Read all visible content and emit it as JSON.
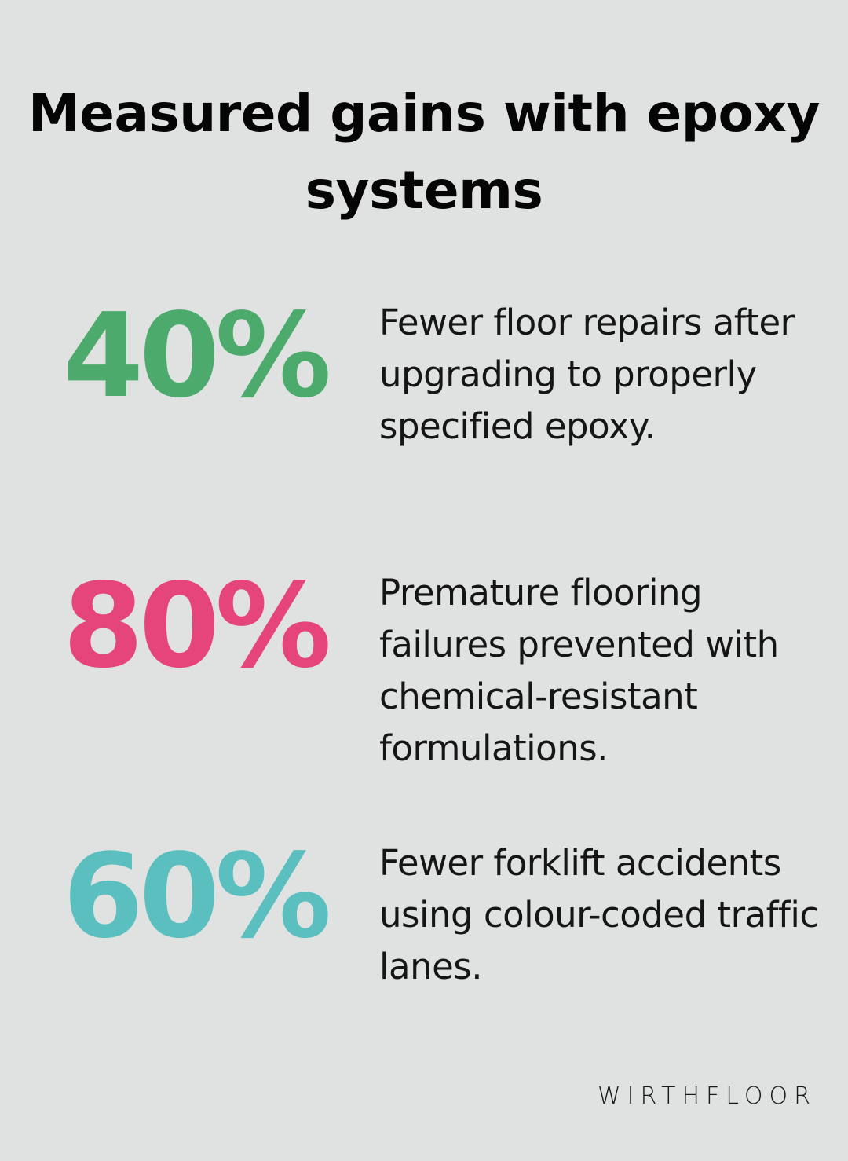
{
  "title": "Measured gains with epoxy systems",
  "stats": [
    {
      "value": "40%",
      "color": "#4caa6c",
      "description": "Fewer floor repairs after upgrading to properly specified epoxy."
    },
    {
      "value": "80%",
      "color": "#e5457a",
      "description": "Premature flooring failures prevented with chemical-resistant formulations."
    },
    {
      "value": "60%",
      "color": "#5bbfbf",
      "description": "Fewer forklift accidents using colour-coded traffic lanes."
    }
  ],
  "brand": "WIRTHFLOOR"
}
